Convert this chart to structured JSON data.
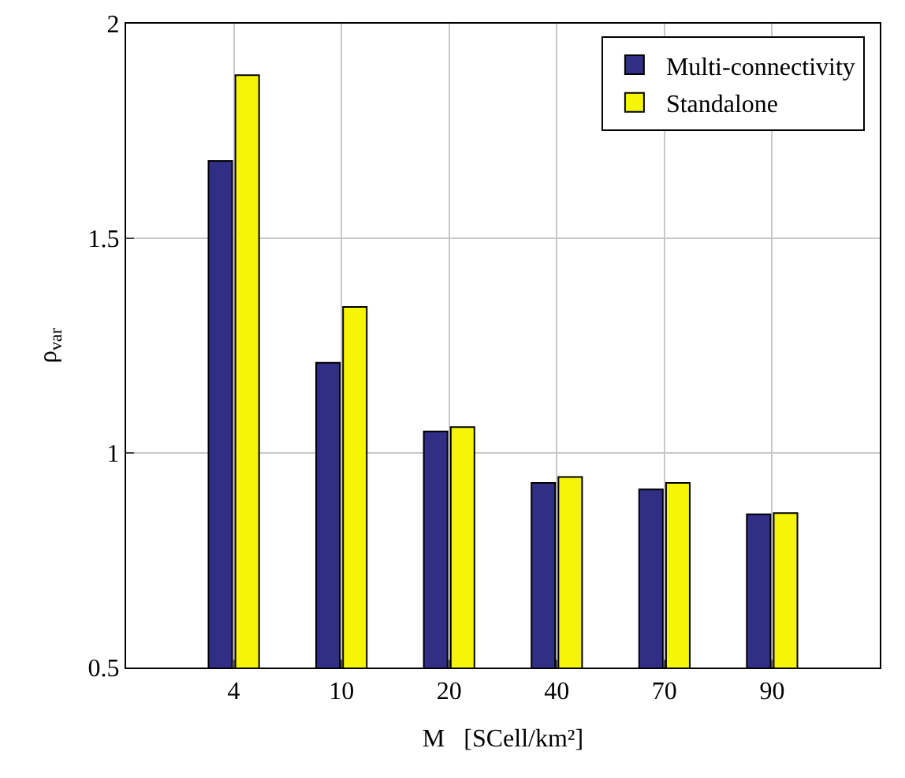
{
  "chart_data": {
    "type": "bar",
    "xlabel": "M   [SCell/km²]",
    "ylabel": "ρ$_{var}$",
    "categories": [
      "4",
      "10",
      "20",
      "40",
      "70",
      "90"
    ],
    "series": [
      {
        "name": "Multi-connectivity",
        "color": "#312e85",
        "values": [
          1.68,
          1.21,
          1.05,
          0.93,
          0.915,
          0.857
        ]
      },
      {
        "name": "Standalone",
        "color": "#f5f50a",
        "values": [
          1.88,
          1.34,
          1.06,
          0.944,
          0.93,
          0.86
        ]
      }
    ],
    "ylim": [
      0.5,
      2
    ],
    "yticks": [
      0.5,
      1,
      1.5,
      2
    ],
    "grid": true,
    "legend": "top right"
  }
}
